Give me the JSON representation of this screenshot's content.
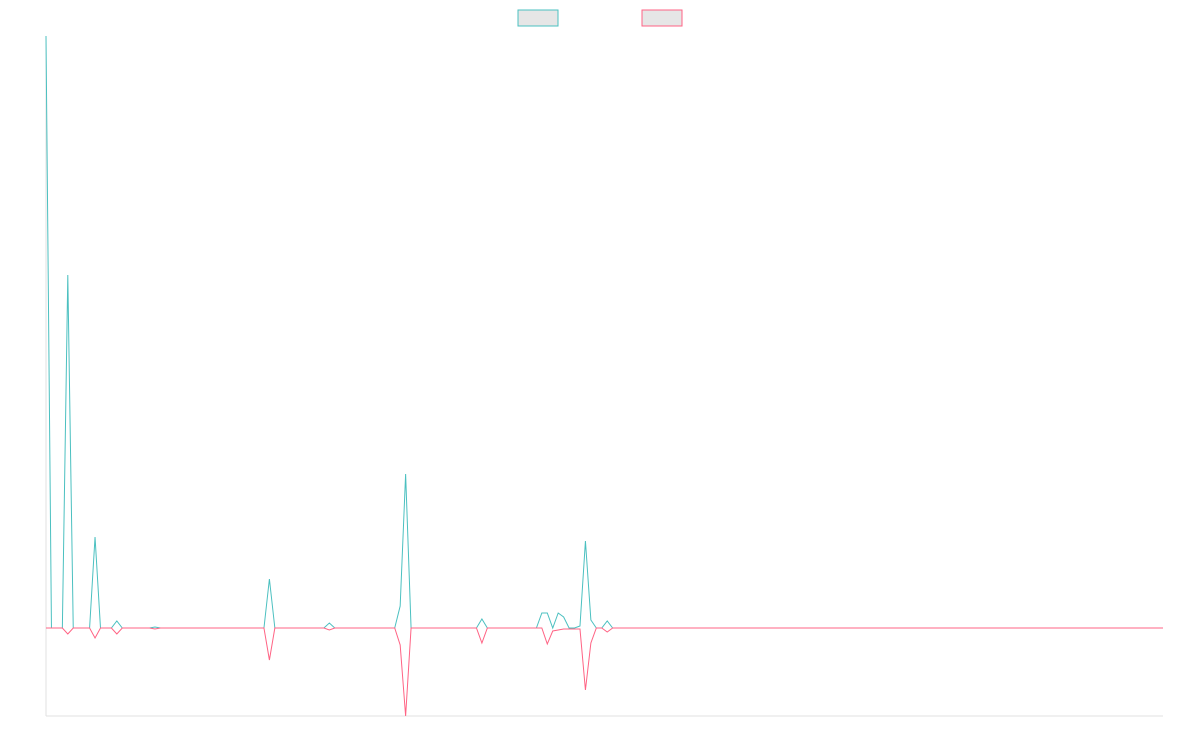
{
  "chart_data": {
    "type": "line",
    "legend": "top",
    "grid": false,
    "ylim": [
      -88,
      592
    ],
    "series": [
      {
        "color": "#4bc0c0",
        "values": [
          592,
          0,
          0,
          0,
          353,
          0,
          0,
          0,
          0,
          91,
          0,
          0,
          0,
          7,
          0,
          0,
          0,
          0,
          0,
          0,
          1,
          0,
          0,
          0,
          0,
          0,
          0,
          0,
          0,
          0,
          0,
          0,
          0,
          0,
          0,
          0,
          0,
          0,
          0,
          0,
          0,
          49,
          0,
          0,
          0,
          0,
          0,
          0,
          0,
          0,
          0,
          0,
          5,
          0,
          0,
          0,
          0,
          0,
          0,
          0,
          0,
          0,
          0,
          0,
          0,
          22,
          154,
          0,
          0,
          0,
          0,
          0,
          0,
          0,
          0,
          0,
          0,
          0,
          0,
          0,
          9,
          0,
          0,
          0,
          0,
          0,
          0,
          0,
          0,
          0,
          0,
          15,
          15,
          0,
          15,
          11,
          0,
          0,
          2,
          87,
          8,
          0,
          0,
          7,
          0,
          0,
          0,
          0,
          0,
          0,
          0,
          0,
          0,
          0,
          0,
          0,
          0,
          0,
          0,
          0,
          0,
          0,
          0,
          0,
          0,
          0,
          0,
          0,
          0,
          0,
          0,
          0,
          0,
          0,
          0,
          0,
          0,
          0,
          0,
          0,
          0,
          0,
          0,
          0,
          0,
          0,
          0,
          0,
          0,
          0,
          0,
          0,
          0,
          0,
          0,
          0,
          0,
          0,
          0,
          0,
          0,
          0,
          0,
          0,
          0,
          0,
          0,
          0,
          0,
          0,
          0,
          0,
          0,
          0,
          0,
          0,
          0,
          0,
          0,
          0,
          0,
          0,
          0,
          0,
          0,
          0,
          0,
          0,
          0,
          0,
          0,
          0,
          0,
          0,
          0,
          0,
          0,
          0,
          0,
          0,
          0,
          0,
          0,
          0,
          0,
          0
        ]
      },
      {
        "color": "#ff6384",
        "values": [
          0,
          0,
          0,
          0,
          -6,
          0,
          0,
          0,
          0,
          -10,
          0,
          0,
          0,
          -6,
          0,
          0,
          0,
          0,
          0,
          0,
          -1,
          0,
          0,
          0,
          0,
          0,
          0,
          0,
          0,
          0,
          0,
          0,
          0,
          0,
          0,
          0,
          0,
          0,
          0,
          0,
          0,
          -32,
          0,
          0,
          0,
          0,
          0,
          0,
          0,
          0,
          0,
          0,
          -2,
          0,
          0,
          0,
          0,
          0,
          0,
          0,
          0,
          0,
          0,
          0,
          0,
          -17,
          -88,
          0,
          0,
          0,
          0,
          0,
          0,
          0,
          0,
          0,
          0,
          0,
          0,
          0,
          -15,
          0,
          0,
          0,
          0,
          0,
          0,
          0,
          0,
          0,
          0,
          0,
          -16,
          -3,
          -2,
          -1,
          -1,
          -1,
          -1,
          -62,
          -15,
          0,
          0,
          -4,
          0,
          0,
          0,
          0,
          0,
          0,
          0,
          0,
          0,
          0,
          0,
          0,
          0,
          0,
          0,
          0,
          0,
          0,
          0,
          0,
          0,
          0,
          0,
          0,
          0,
          0,
          0,
          0,
          0,
          0,
          0,
          0,
          0,
          0,
          0,
          0,
          0,
          0,
          0,
          0,
          0,
          0,
          0,
          0,
          0,
          0,
          0,
          0,
          0,
          0,
          0,
          0,
          0,
          0,
          0,
          0,
          0,
          0,
          0,
          0,
          0,
          0,
          0,
          0,
          0,
          0,
          0,
          0,
          0,
          0,
          0,
          0,
          0,
          0,
          0,
          0,
          0,
          0,
          0,
          0,
          0,
          0,
          0,
          0,
          0,
          0,
          0,
          0,
          0,
          0,
          0,
          0,
          0,
          0,
          0,
          0,
          0,
          0,
          0,
          0,
          0,
          0
        ]
      }
    ]
  }
}
